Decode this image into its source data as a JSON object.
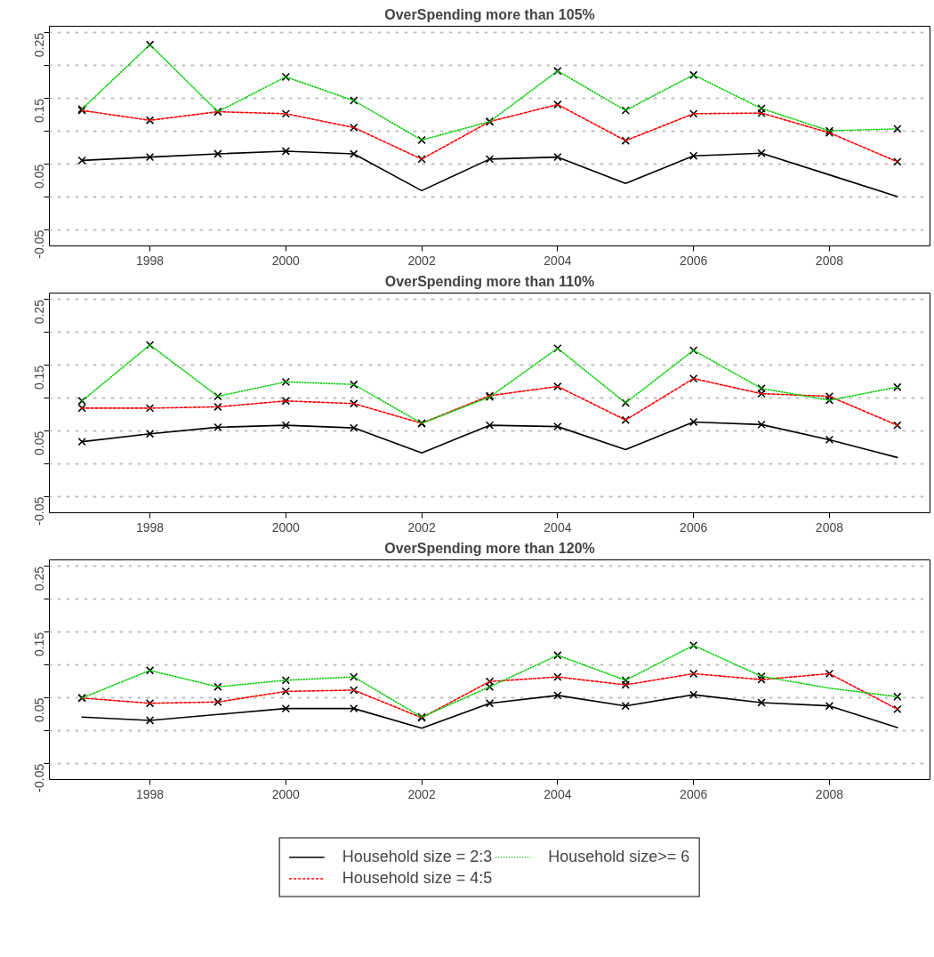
{
  "chart_data": [
    {
      "type": "line",
      "title": "OverSpending more than 105%",
      "x": [
        1997,
        1998,
        1999,
        2000,
        2001,
        2002,
        2003,
        2004,
        2005,
        2006,
        2007,
        2008,
        2009
      ],
      "xlim": [
        1996.52,
        2009.48
      ],
      "xticks": [
        1998,
        2000,
        2002,
        2004,
        2006,
        2008
      ],
      "ylim": [
        -0.074,
        0.26
      ],
      "yticks": [
        -0.05,
        {
          "value": 0,
          "label": null
        },
        0.05,
        {
          "value": 0.1,
          "label": null
        },
        0.15,
        {
          "value": 0.2,
          "label": null
        },
        0.25
      ],
      "grid": "y",
      "legend": false,
      "series": [
        {
          "color": "#000000",
          "line_style": "solid",
          "values": [
            0.056,
            0.061,
            0.066,
            0.07,
            0.066,
            0.01,
            0.058,
            0.061,
            0.021,
            0.063,
            0.067,
            0.034,
            0.001
          ]
        },
        {
          "color": "#ff0000",
          "line_style": "dashed",
          "values": [
            0.132,
            0.117,
            0.13,
            0.127,
            0.106,
            0.058,
            0.115,
            0.141,
            0.086,
            0.127,
            0.128,
            0.098,
            0.054
          ]
        },
        {
          "color": "#00cd00",
          "line_style": "dotted",
          "values": [
            0.134,
            0.232,
            0.13,
            0.183,
            0.147,
            0.087,
            0.115,
            0.192,
            0.132,
            0.186,
            0.135,
            0.101,
            0.104
          ]
        },
        {
          "type": "scatter",
          "color": "#000000",
          "marker": "cross",
          "values": [
            0.056,
            0.061,
            0.066,
            0.07,
            0.066,
            null,
            0.058,
            0.061,
            null,
            0.063,
            0.067,
            null,
            null
          ]
        },
        {
          "type": "scatter",
          "color": "#000000",
          "marker": "cross",
          "values": [
            0.132,
            0.117,
            0.13,
            0.127,
            0.106,
            0.058,
            0.115,
            0.141,
            0.086,
            0.127,
            0.128,
            0.098,
            0.054
          ]
        },
        {
          "type": "scatter",
          "color": "#000000",
          "marker": "cross",
          "values": [
            0.134,
            0.232,
            0.13,
            0.183,
            0.147,
            0.087,
            0.115,
            0.192,
            0.132,
            0.186,
            0.135,
            0.101,
            0.104
          ]
        }
      ]
    },
    {
      "type": "line",
      "title": "OverSpending more than 110%",
      "x": [
        1997,
        1998,
        1999,
        2000,
        2001,
        2002,
        2003,
        2004,
        2005,
        2006,
        2007,
        2008,
        2009
      ],
      "xlim": [
        1996.52,
        2009.48
      ],
      "xticks": [
        1998,
        2000,
        2002,
        2004,
        2006,
        2008
      ],
      "ylim": [
        -0.074,
        0.26
      ],
      "yticks": [
        -0.05,
        {
          "value": 0,
          "label": null
        },
        0.05,
        {
          "value": 0.1,
          "label": null
        },
        0.15,
        {
          "value": 0.2,
          "label": null
        },
        0.25
      ],
      "grid": "y",
      "legend": false,
      "series": [
        {
          "color": "#000000",
          "line_style": "solid",
          "values": [
            0.034,
            0.046,
            0.056,
            0.059,
            0.055,
            0.017,
            0.059,
            0.057,
            0.022,
            0.064,
            0.06,
            0.037,
            0.01
          ]
        },
        {
          "color": "#ff0000",
          "line_style": "dashed",
          "values": [
            0.085,
            0.085,
            0.087,
            0.096,
            0.092,
            0.062,
            0.104,
            0.118,
            0.067,
            0.13,
            0.107,
            0.103,
            0.059
          ]
        },
        {
          "color": "#00cd00",
          "line_style": "dotted",
          "values": [
            0.096,
            0.181,
            0.103,
            0.125,
            0.121,
            0.062,
            0.102,
            0.176,
            0.093,
            0.173,
            0.115,
            0.097,
            0.117
          ]
        },
        {
          "type": "scatter",
          "color": "#000000",
          "marker": "cross",
          "values": [
            0.034,
            0.046,
            0.056,
            0.059,
            0.055,
            null,
            0.059,
            0.057,
            null,
            0.064,
            0.06,
            0.037,
            null
          ]
        },
        {
          "type": "scatter",
          "color": "#000000",
          "marker": "cross",
          "values": [
            0.085,
            0.085,
            0.087,
            0.096,
            0.092,
            0.062,
            0.104,
            0.118,
            0.067,
            0.13,
            0.107,
            0.103,
            0.059
          ]
        },
        {
          "type": "scatter",
          "color": "#000000",
          "marker": "cross",
          "values": [
            0.096,
            0.181,
            0.103,
            0.125,
            0.121,
            0.062,
            0.102,
            0.176,
            0.093,
            0.173,
            0.115,
            0.097,
            0.117
          ]
        }
      ]
    },
    {
      "type": "line",
      "title": "OverSpending more than 120%",
      "x": [
        1997,
        1998,
        1999,
        2000,
        2001,
        2002,
        2003,
        2004,
        2005,
        2006,
        2007,
        2008,
        2009
      ],
      "xlim": [
        1996.52,
        2009.48
      ],
      "xticks": [
        1998,
        2000,
        2002,
        2004,
        2006,
        2008
      ],
      "ylim": [
        -0.074,
        0.26
      ],
      "yticks": [
        -0.05,
        {
          "value": 0,
          "label": null
        },
        0.05,
        {
          "value": 0.1,
          "label": null
        },
        0.15,
        {
          "value": 0.2,
          "label": null
        },
        0.25
      ],
      "grid": "y",
      "legend": "bottom",
      "series": [
        {
          "name": "Household size = 2:3",
          "color": "#000000",
          "line_style": "solid",
          "values": [
            0.021,
            0.016,
            0.025,
            0.034,
            0.034,
            0.004,
            0.042,
            0.054,
            0.038,
            0.055,
            0.043,
            0.038,
            0.005
          ]
        },
        {
          "name": "Household size = 4:5",
          "color": "#ff0000",
          "line_style": "dashed",
          "values": [
            0.05,
            0.042,
            0.044,
            0.06,
            0.062,
            0.02,
            0.075,
            0.082,
            0.07,
            0.087,
            0.078,
            0.087,
            0.033
          ]
        },
        {
          "name": "Household size>= 6",
          "color": "#00cd00",
          "line_style": "dotted",
          "values": [
            0.05,
            0.092,
            0.067,
            0.077,
            0.082,
            0.021,
            0.067,
            0.115,
            0.077,
            0.13,
            0.083,
            0.065,
            0.052
          ]
        },
        {
          "type": "scatter",
          "color": "#000000",
          "marker": "cross",
          "values": [
            null,
            0.016,
            null,
            0.034,
            0.034,
            null,
            0.042,
            0.054,
            0.038,
            0.055,
            0.043,
            0.038,
            null
          ]
        },
        {
          "type": "scatter",
          "color": "#000000",
          "marker": "cross",
          "values": [
            0.05,
            0.042,
            0.044,
            0.06,
            0.062,
            0.02,
            0.075,
            0.082,
            0.07,
            0.087,
            0.078,
            0.087,
            0.033
          ]
        },
        {
          "type": "scatter",
          "color": "#000000",
          "marker": "cross",
          "values": [
            0.05,
            0.092,
            0.067,
            0.077,
            0.082,
            0.021,
            0.067,
            0.115,
            0.077,
            0.13,
            0.083,
            null,
            0.052
          ]
        }
      ]
    }
  ]
}
